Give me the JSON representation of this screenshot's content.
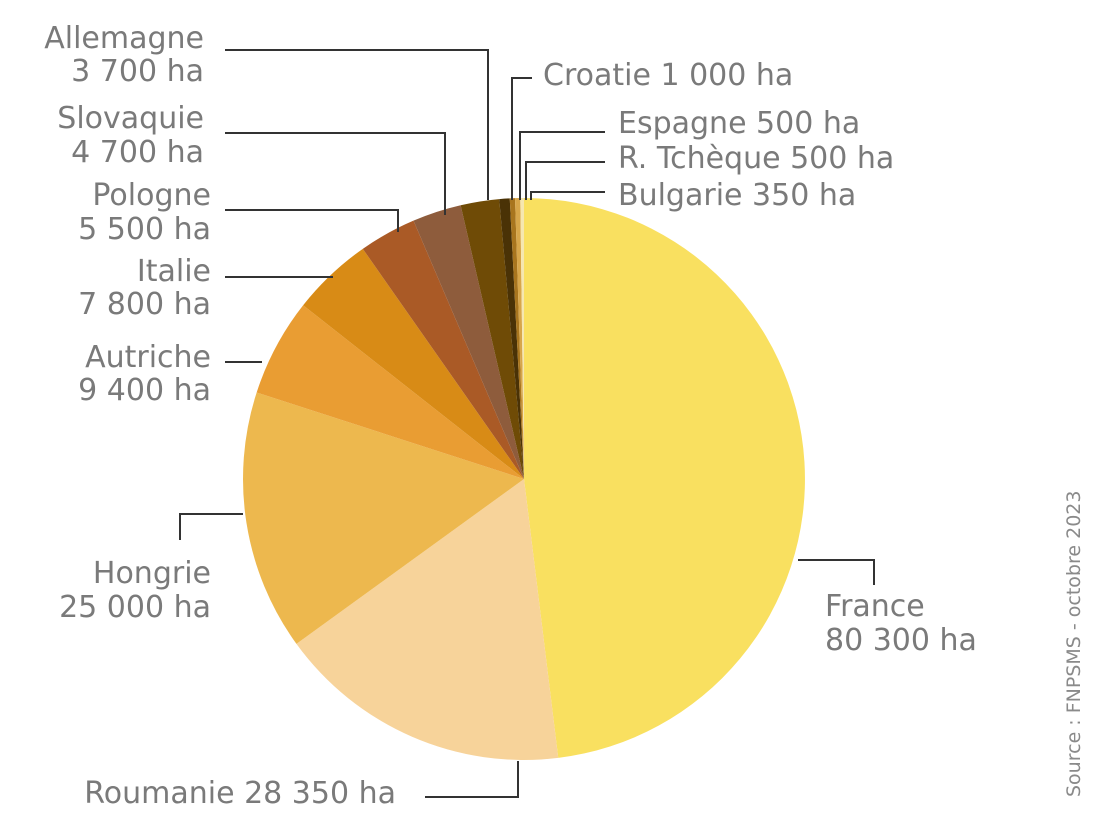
{
  "chart_data": {
    "type": "pie",
    "unit": "ha",
    "slices": [
      {
        "name": "France",
        "value": 80300,
        "label_lines": [
          "France",
          "80 300 ha"
        ],
        "color": "#F9E060"
      },
      {
        "name": "Roumanie",
        "value": 28350,
        "label_lines": [
          "Roumanie 28 350 ha"
        ],
        "color": "#F7D39A"
      },
      {
        "name": "Hongrie",
        "value": 25000,
        "label_lines": [
          "Hongrie",
          "25 000 ha"
        ],
        "color": "#EDB84E"
      },
      {
        "name": "Autriche",
        "value": 9400,
        "label_lines": [
          "Autriche",
          "9 400 ha"
        ],
        "color": "#E99D33"
      },
      {
        "name": "Italie",
        "value": 7800,
        "label_lines": [
          "Italie",
          "7 800 ha"
        ],
        "color": "#D88B16"
      },
      {
        "name": "Pologne",
        "value": 5500,
        "label_lines": [
          "Pologne",
          "5 500 ha"
        ],
        "color": "#AA5A26"
      },
      {
        "name": "Slovaquie",
        "value": 4700,
        "label_lines": [
          "Slovaquie",
          "4 700 ha"
        ],
        "color": "#8E5C3C"
      },
      {
        "name": "Allemagne",
        "value": 3700,
        "label_lines": [
          "Allemagne",
          "3 700 ha"
        ],
        "color": "#6F4B06"
      },
      {
        "name": "Croatie",
        "value": 1000,
        "label_lines": [
          "Croatie 1 000 ha"
        ],
        "color": "#4A3206"
      },
      {
        "name": "Espagne",
        "value": 500,
        "label_lines": [
          "Espagne 500 ha"
        ],
        "color": "#A8751E"
      },
      {
        "name": "R. Tchèque",
        "value": 500,
        "label_lines": [
          "R. Tchèque 500 ha"
        ],
        "color": "#D7A64A"
      },
      {
        "name": "Bulgarie",
        "value": 350,
        "label_lines": [
          "Bulgarie 350 ha"
        ],
        "color": "#F6E7B0"
      }
    ]
  },
  "source": "Source : FNPSMS - octobre 2023"
}
